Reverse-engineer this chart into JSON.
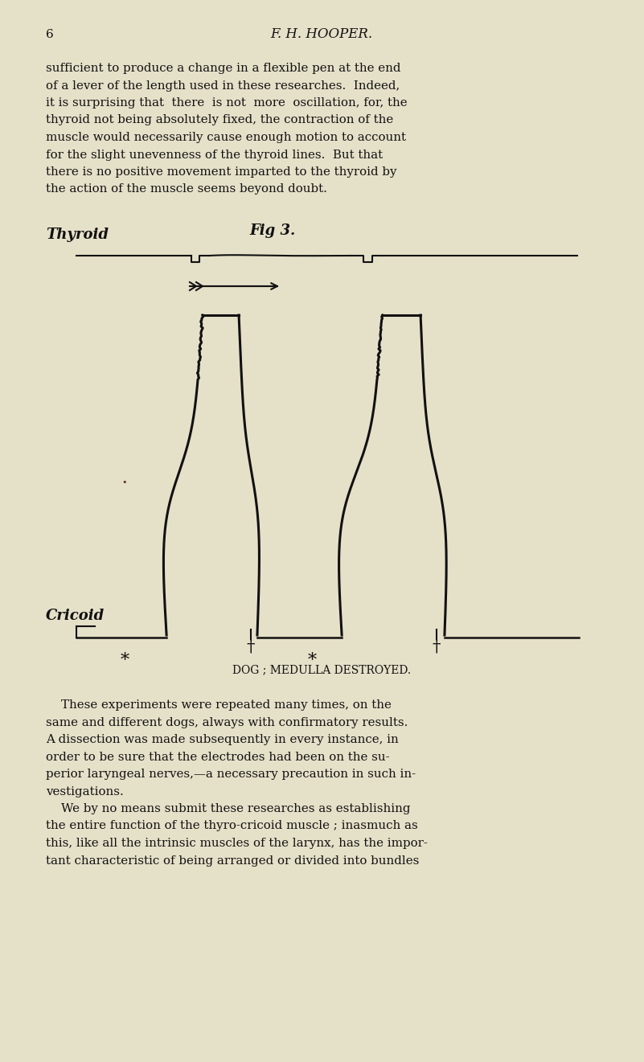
{
  "bg_color": "#e5e0c8",
  "text_color": "#111111",
  "page_number": "6",
  "header": "F. H. HOOPER.",
  "paragraph1_lines": [
    "sufficient to produce a change in a flexible pen at the end",
    "of a lever of the length used in these researches.  Indeed,",
    "it is surprising that  there  is not  more  oscillation, for, the",
    "thyroid not being absolutely fixed, the contraction of the",
    "muscle would necessarily cause enough motion to account",
    "for the slight unevenness of the thyroid lines.  But that",
    "there is no positive movement imparted to the thyroid by",
    "the action of the muscle seems beyond doubt."
  ],
  "fig_label": "Fig 3.",
  "thyroid_label": "Thyroid",
  "cricoid_label": "Cricoid",
  "caption": "DOG ; MEDULLA DESTROYED.",
  "paragraph2_lines": [
    "    These experiments were repeated many times, on the",
    "same and different dogs, always with confirmatory results.",
    "A dissection was made subsequently in every instance, in",
    "order to be sure that the electrodes had been on the su-",
    "perior laryngeal nerves,—a necessary precaution in such in-",
    "vestigations.",
    "    We by no means submit these researches as establishing",
    "the entire function of the thyro-cricoid muscle ; inasmuch as",
    "this, like all the intrinsic muscles of the larynx, has the impor-",
    "tant characteristic of being arranged or divided into bundles"
  ]
}
